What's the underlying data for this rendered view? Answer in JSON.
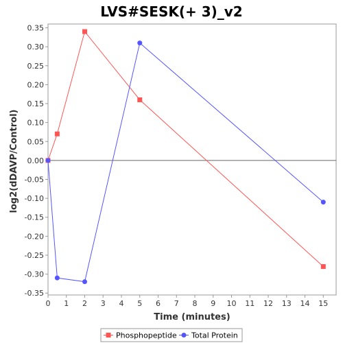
{
  "chart_data": {
    "type": "line",
    "title": "LVS#SESK(+ 3)_v2",
    "xlabel": "Time (minutes)",
    "ylabel": "log2(dDAVP/Control)",
    "xlim": [
      0,
      15.7
    ],
    "ylim": [
      -0.355,
      0.36
    ],
    "x_ticks": [
      0,
      1,
      2,
      3,
      4,
      5,
      6,
      7,
      8,
      9,
      10,
      11,
      12,
      13,
      14,
      15
    ],
    "y_ticks": [
      0.35,
      0.3,
      0.25,
      0.2,
      0.15,
      0.1,
      0.05,
      0.0,
      -0.05,
      -0.1,
      -0.15,
      -0.2,
      -0.25,
      -0.3,
      -0.35
    ],
    "y_tick_labels": [
      "0.35",
      "0.30",
      "0.25",
      "0.20",
      "0.15",
      "0.10",
      "0.05",
      "0.00",
      "-0.05",
      "-0.10",
      "-0.15",
      "-0.20",
      "-0.25",
      "-0.30",
      "-0.35"
    ],
    "zero_line": true,
    "grid": false,
    "legend_position": "bottom",
    "series": [
      {
        "name": "Phosphopeptide",
        "color": "#ff5555",
        "marker": "square",
        "x": [
          0,
          0.5,
          2,
          5,
          15
        ],
        "y": [
          0.0,
          0.07,
          0.34,
          0.16,
          -0.28
        ]
      },
      {
        "name": "Total Protein",
        "color": "#5555ff",
        "marker": "circle",
        "x": [
          0,
          0.5,
          2,
          5,
          15
        ],
        "y": [
          0.0,
          -0.31,
          -0.32,
          0.31,
          -0.11
        ]
      }
    ]
  }
}
